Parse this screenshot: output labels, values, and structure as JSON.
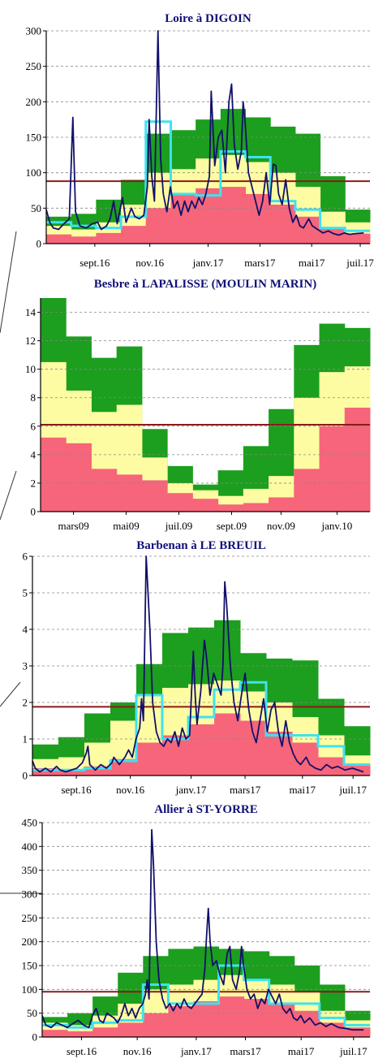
{
  "colors": {
    "red": "#f7657a",
    "yellow": "#fdfca2",
    "green": "#1c9e1e",
    "bright_green": "#36c436",
    "daily_flow": "#12106a",
    "monthly_flow": "#3ee2f0",
    "threshold": "#8b1a1a",
    "title": "#101078"
  },
  "chart_data": [
    {
      "type": "area",
      "title": "Loire à DIGOIN",
      "ylim": [
        0,
        300
      ],
      "yticks": [
        "0",
        "50",
        "100",
        "150",
        "200",
        "250",
        "300"
      ],
      "xticks": [
        "sept.16",
        "nov.16",
        "janv.17",
        "mars17",
        "mai17",
        "juil.17"
      ],
      "x_period": [
        "2016-07",
        "2017-07"
      ],
      "threshold": 88,
      "bands_upper": {
        "red": [
          13,
          10,
          15,
          25,
          50,
          70,
          78,
          80,
          70,
          55,
          38,
          22,
          14
        ],
        "yellow": [
          25,
          20,
          30,
          55,
          100,
          105,
          120,
          125,
          115,
          100,
          80,
          45,
          30
        ],
        "green": [
          38,
          42,
          62,
          90,
          155,
          160,
          175,
          190,
          178,
          165,
          155,
          95,
          48
        ]
      },
      "monthly_flow": [
        30,
        25,
        22,
        38,
        172,
        70,
        68,
        130,
        122,
        60,
        48,
        22,
        18
      ],
      "daily_flow": [
        [
          0,
          48
        ],
        [
          4,
          30
        ],
        [
          8,
          22
        ],
        [
          14,
          20
        ],
        [
          20,
          28
        ],
        [
          26,
          35
        ],
        [
          30,
          178
        ],
        [
          33,
          45
        ],
        [
          38,
          25
        ],
        [
          45,
          22
        ],
        [
          52,
          28
        ],
        [
          58,
          30
        ],
        [
          62,
          20
        ],
        [
          68,
          25
        ],
        [
          72,
          35
        ],
        [
          76,
          60
        ],
        [
          80,
          28
        ],
        [
          86,
          65
        ],
        [
          90,
          30
        ],
        [
          96,
          50
        ],
        [
          100,
          38
        ],
        [
          105,
          35
        ],
        [
          110,
          40
        ],
        [
          114,
          80
        ],
        [
          116,
          175
        ],
        [
          119,
          95
        ],
        [
          122,
          60
        ],
        [
          126,
          300
        ],
        [
          129,
          120
        ],
        [
          132,
          70
        ],
        [
          136,
          45
        ],
        [
          140,
          80
        ],
        [
          144,
          50
        ],
        [
          148,
          60
        ],
        [
          152,
          40
        ],
        [
          156,
          60
        ],
        [
          160,
          45
        ],
        [
          164,
          60
        ],
        [
          168,
          50
        ],
        [
          172,
          65
        ],
        [
          176,
          55
        ],
        [
          180,
          70
        ],
        [
          184,
          95
        ],
        [
          186,
          215
        ],
        [
          190,
          110
        ],
        [
          194,
          150
        ],
        [
          198,
          160
        ],
        [
          202,
          100
        ],
        [
          206,
          200
        ],
        [
          209,
          225
        ],
        [
          212,
          140
        ],
        [
          216,
          105
        ],
        [
          220,
          130
        ],
        [
          222,
          200
        ],
        [
          224,
          175
        ],
        [
          228,
          100
        ],
        [
          232,
          80
        ],
        [
          236,
          60
        ],
        [
          240,
          40
        ],
        [
          244,
          60
        ],
        [
          248,
          100
        ],
        [
          252,
          55
        ],
        [
          256,
          112
        ],
        [
          259,
          110
        ],
        [
          262,
          70
        ],
        [
          266,
          55
        ],
        [
          270,
          90
        ],
        [
          274,
          50
        ],
        [
          278,
          30
        ],
        [
          282,
          40
        ],
        [
          286,
          25
        ],
        [
          290,
          22
        ],
        [
          296,
          35
        ],
        [
          300,
          25
        ],
        [
          306,
          20
        ],
        [
          312,
          15
        ],
        [
          318,
          18
        ],
        [
          324,
          14
        ],
        [
          330,
          12
        ],
        [
          336,
          15
        ],
        [
          342,
          13
        ],
        [
          348,
          14
        ],
        [
          358,
          15
        ]
      ]
    },
    {
      "type": "area",
      "title": "Besbre à LAPALISSE (MOULIN MARIN)",
      "ylim": [
        0,
        15
      ],
      "yticks": [
        "0",
        "2",
        "4",
        "6",
        "8",
        "10",
        "12",
        "14"
      ],
      "xticks": [
        "mars09",
        "mai09",
        "juil.09",
        "sept.09",
        "nov.09",
        "janv.10"
      ],
      "x_period": [
        "2009-01",
        "2010-02"
      ],
      "threshold": 6.1,
      "bands_upper": {
        "red": [
          5.2,
          4.8,
          3.0,
          2.6,
          2.2,
          1.3,
          0.9,
          0.5,
          0.6,
          1.0,
          3.0,
          6.0,
          7.3
        ],
        "yellow": [
          10.5,
          8.5,
          7.0,
          7.5,
          3.8,
          2.0,
          1.5,
          1.1,
          1.6,
          2.5,
          8.0,
          9.8,
          10.2
        ],
        "green": [
          15.0,
          12.3,
          10.8,
          11.6,
          5.8,
          3.2,
          1.9,
          2.9,
          4.6,
          7.2,
          11.7,
          13.2,
          12.9
        ]
      }
    },
    {
      "type": "area",
      "title": "Barbenan à LE BREUIL",
      "ylim": [
        0,
        6
      ],
      "yticks": [
        "0",
        "1",
        "2",
        "3",
        "4",
        "5",
        "6"
      ],
      "xticks": [
        "sept.16",
        "nov.16",
        "janv.17",
        "mars17",
        "mai17",
        "juil.17"
      ],
      "x_period": [
        "2016-07",
        "2017-07"
      ],
      "threshold": 1.88,
      "bands_upper": {
        "red": [
          0.2,
          0.15,
          0.25,
          0.45,
          0.9,
          1.1,
          1.4,
          1.7,
          1.5,
          1.2,
          0.9,
          0.5,
          0.3
        ],
        "yellow": [
          0.45,
          0.5,
          0.9,
          1.5,
          2.2,
          2.4,
          2.5,
          2.6,
          2.3,
          2.0,
          1.6,
          1.1,
          0.55
        ],
        "green": [
          0.85,
          1.05,
          1.7,
          2.0,
          3.05,
          3.9,
          4.05,
          4.25,
          3.35,
          3.2,
          3.15,
          2.1,
          1.35
        ]
      },
      "monthly_flow": [
        0.15,
        0.15,
        0.2,
        0.4,
        2.2,
        1.0,
        1.6,
        2.35,
        2.55,
        1.1,
        1.1,
        0.8,
        0.3
      ],
      "daily_flow": [
        [
          0,
          0.4
        ],
        [
          3,
          0.2
        ],
        [
          8,
          0.1
        ],
        [
          14,
          0.2
        ],
        [
          20,
          0.1
        ],
        [
          26,
          0.25
        ],
        [
          30,
          0.15
        ],
        [
          36,
          0.1
        ],
        [
          42,
          0.15
        ],
        [
          48,
          0.2
        ],
        [
          54,
          0.35
        ],
        [
          58,
          0.6
        ],
        [
          60,
          0.8
        ],
        [
          62,
          0.3
        ],
        [
          68,
          0.15
        ],
        [
          74,
          0.3
        ],
        [
          80,
          0.2
        ],
        [
          86,
          0.35
        ],
        [
          88,
          0.5
        ],
        [
          94,
          0.3
        ],
        [
          100,
          0.5
        ],
        [
          104,
          0.7
        ],
        [
          108,
          0.5
        ],
        [
          112,
          1.0
        ],
        [
          116,
          1.3
        ],
        [
          118,
          2.1
        ],
        [
          120,
          1.5
        ],
        [
          123,
          6.0
        ],
        [
          125,
          5.0
        ],
        [
          127,
          4.0
        ],
        [
          130,
          2.0
        ],
        [
          134,
          1.2
        ],
        [
          138,
          0.9
        ],
        [
          142,
          0.8
        ],
        [
          146,
          1.0
        ],
        [
          150,
          0.9
        ],
        [
          154,
          1.2
        ],
        [
          158,
          0.8
        ],
        [
          162,
          1.3
        ],
        [
          166,
          1.0
        ],
        [
          170,
          1.1
        ],
        [
          174,
          3.4
        ],
        [
          176,
          2.2
        ],
        [
          178,
          1.4
        ],
        [
          182,
          2.3
        ],
        [
          186,
          3.7
        ],
        [
          188,
          3.3
        ],
        [
          192,
          2.2
        ],
        [
          196,
          2.8
        ],
        [
          200,
          2.5
        ],
        [
          204,
          2.2
        ],
        [
          206,
          3.0
        ],
        [
          208,
          5.3
        ],
        [
          210,
          4.7
        ],
        [
          214,
          3.0
        ],
        [
          218,
          2.0
        ],
        [
          222,
          1.5
        ],
        [
          226,
          2.2
        ],
        [
          230,
          2.8
        ],
        [
          234,
          1.8
        ],
        [
          238,
          1.2
        ],
        [
          242,
          0.9
        ],
        [
          246,
          1.5
        ],
        [
          250,
          2.1
        ],
        [
          254,
          1.2
        ],
        [
          258,
          1.8
        ],
        [
          262,
          2.0
        ],
        [
          266,
          1.2
        ],
        [
          270,
          0.8
        ],
        [
          274,
          1.5
        ],
        [
          278,
          0.9
        ],
        [
          282,
          0.6
        ],
        [
          286,
          0.4
        ],
        [
          290,
          0.3
        ],
        [
          296,
          0.5
        ],
        [
          300,
          0.3
        ],
        [
          306,
          0.2
        ],
        [
          312,
          0.15
        ],
        [
          318,
          0.3
        ],
        [
          324,
          0.2
        ],
        [
          330,
          0.25
        ],
        [
          338,
          0.15
        ],
        [
          346,
          0.2
        ],
        [
          358,
          0.1
        ]
      ]
    },
    {
      "type": "area",
      "title": "Allier à ST-YORRE",
      "ylim": [
        0,
        450
      ],
      "yticks": [
        "0",
        "50",
        "100",
        "150",
        "200",
        "250",
        "300",
        "350",
        "400",
        "450"
      ],
      "xticks": [
        "sept.16",
        "nov.16",
        "janv.17",
        "mars17",
        "mai17",
        "juil.17"
      ],
      "x_period": [
        "2016-07",
        "2017-07"
      ],
      "threshold": 95,
      "bands_upper": {
        "red": [
          15,
          12,
          20,
          30,
          50,
          65,
          75,
          85,
          80,
          70,
          55,
          30,
          20
        ],
        "yellow": [
          30,
          25,
          45,
          70,
          100,
          110,
          120,
          130,
          120,
          110,
          95,
          55,
          35
        ],
        "green": [
          42,
          50,
          85,
          135,
          170,
          185,
          190,
          185,
          180,
          170,
          150,
          110,
          55
        ]
      },
      "monthly_flow": [
        25,
        20,
        30,
        35,
        110,
        70,
        70,
        150,
        120,
        70,
        70,
        40,
        25
      ],
      "daily_flow": [
        [
          0,
          45
        ],
        [
          4,
          25
        ],
        [
          10,
          20
        ],
        [
          16,
          30
        ],
        [
          22,
          25
        ],
        [
          28,
          20
        ],
        [
          34,
          28
        ],
        [
          40,
          35
        ],
        [
          46,
          25
        ],
        [
          52,
          20
        ],
        [
          56,
          45
        ],
        [
          60,
          60
        ],
        [
          64,
          35
        ],
        [
          68,
          30
        ],
        [
          72,
          50
        ],
        [
          76,
          45
        ],
        [
          80,
          40
        ],
        [
          84,
          30
        ],
        [
          88,
          45
        ],
        [
          92,
          70
        ],
        [
          96,
          45
        ],
        [
          100,
          60
        ],
        [
          104,
          40
        ],
        [
          108,
          60
        ],
        [
          112,
          70
        ],
        [
          115,
          90
        ],
        [
          117,
          120
        ],
        [
          119,
          80
        ],
        [
          122,
          435
        ],
        [
          124,
          360
        ],
        [
          127,
          200
        ],
        [
          130,
          120
        ],
        [
          134,
          80
        ],
        [
          138,
          60
        ],
        [
          142,
          70
        ],
        [
          146,
          55
        ],
        [
          150,
          70
        ],
        [
          154,
          60
        ],
        [
          158,
          80
        ],
        [
          162,
          65
        ],
        [
          166,
          60
        ],
        [
          170,
          70
        ],
        [
          174,
          80
        ],
        [
          178,
          90
        ],
        [
          181,
          140
        ],
        [
          183,
          210
        ],
        [
          185,
          270
        ],
        [
          187,
          200
        ],
        [
          190,
          150
        ],
        [
          194,
          160
        ],
        [
          198,
          130
        ],
        [
          202,
          110
        ],
        [
          206,
          175
        ],
        [
          209,
          190
        ],
        [
          212,
          120
        ],
        [
          216,
          100
        ],
        [
          220,
          140
        ],
        [
          222,
          190
        ],
        [
          224,
          155
        ],
        [
          228,
          100
        ],
        [
          232,
          80
        ],
        [
          236,
          90
        ],
        [
          240,
          60
        ],
        [
          244,
          80
        ],
        [
          248,
          70
        ],
        [
          252,
          100
        ],
        [
          256,
          85
        ],
        [
          260,
          70
        ],
        [
          264,
          90
        ],
        [
          268,
          60
        ],
        [
          272,
          50
        ],
        [
          276,
          60
        ],
        [
          280,
          40
        ],
        [
          284,
          35
        ],
        [
          288,
          45
        ],
        [
          292,
          30
        ],
        [
          298,
          40
        ],
        [
          304,
          25
        ],
        [
          310,
          30
        ],
        [
          316,
          22
        ],
        [
          322,
          28
        ],
        [
          330,
          20
        ],
        [
          338,
          18
        ],
        [
          346,
          15
        ],
        [
          358,
          15
        ]
      ]
    }
  ]
}
